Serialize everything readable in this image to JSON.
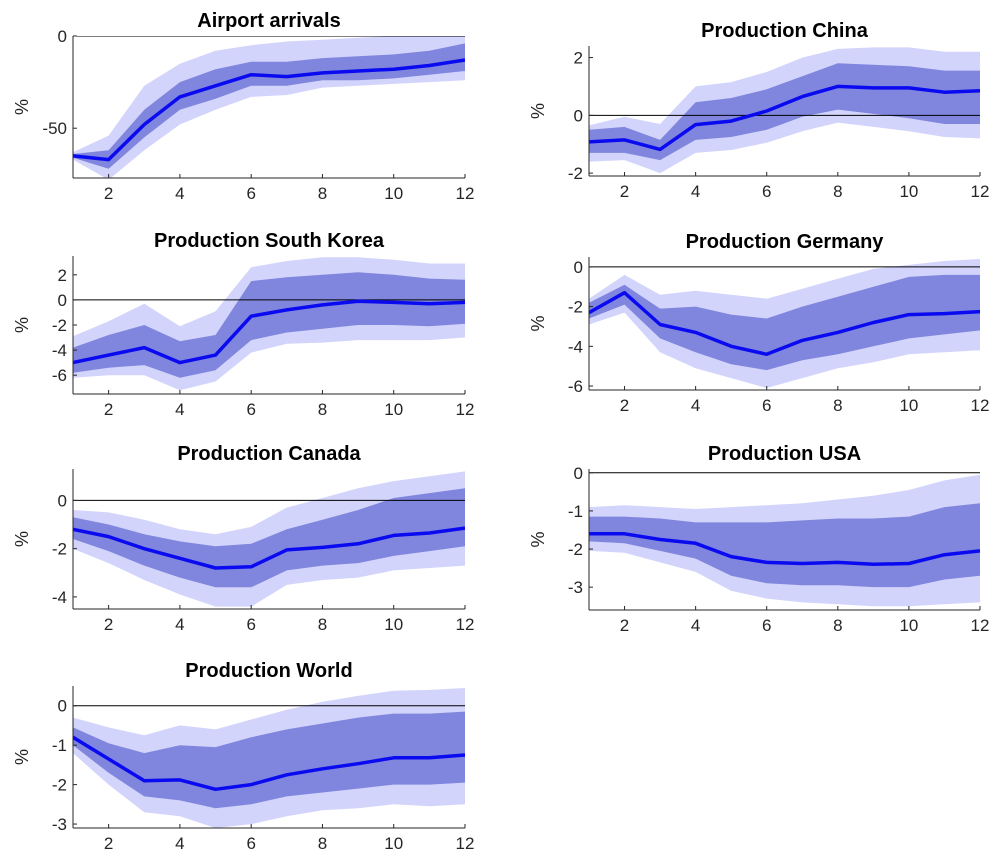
{
  "figure": {
    "background": "#ffffff"
  },
  "style": {
    "outer_band_color": "#d2d4fb",
    "inner_band_color": "#8086dd",
    "line_color": "#0a0af0",
    "zero_line_color": "#000000",
    "axis_color": "#262626"
  },
  "chart_data": [
    {
      "type": "line",
      "title": "Airport arrivals",
      "ylabel": "%",
      "xlim": [
        1,
        12
      ],
      "ylim": [
        -77,
        0
      ],
      "xticks": [
        2,
        4,
        6,
        8,
        10,
        12
      ],
      "yticks": [
        0,
        -50
      ],
      "x": [
        1,
        2,
        3,
        4,
        5,
        6,
        7,
        8,
        9,
        10,
        11,
        12
      ],
      "median": [
        -65,
        -67,
        -48,
        -33,
        -27,
        -21,
        -22,
        -20,
        -19,
        -18,
        -16,
        -13
      ],
      "inner_band": {
        "lower": [
          -66,
          -72,
          -55,
          -40,
          -34,
          -27,
          -27,
          -24,
          -24,
          -23,
          -21,
          -19
        ],
        "upper": [
          -64,
          -62,
          -40,
          -25,
          -18,
          -14,
          -14,
          -12,
          -11,
          -10,
          -8,
          -4
        ]
      },
      "outer_band": {
        "lower": [
          -67,
          -78,
          -62,
          -48,
          -40,
          -33,
          -32,
          -28,
          -27,
          -26,
          -25,
          -24
        ],
        "upper": [
          -63,
          -54,
          -27,
          -15,
          -8,
          -5,
          -3,
          -2,
          -1,
          0,
          0,
          0
        ]
      },
      "zero_line": true,
      "grid": false
    },
    {
      "type": "line",
      "title": "Production China",
      "ylabel": "%",
      "xlim": [
        1,
        12
      ],
      "ylim": [
        -2.1,
        2.4
      ],
      "xticks": [
        2,
        4,
        6,
        8,
        10,
        12
      ],
      "yticks": [
        2,
        0,
        -2
      ],
      "x": [
        1,
        2,
        3,
        4,
        5,
        6,
        7,
        8,
        9,
        10,
        11,
        12
      ],
      "median": [
        -0.92,
        -0.85,
        -1.18,
        -0.32,
        -0.2,
        0.15,
        0.65,
        1.0,
        0.95,
        0.95,
        0.8,
        0.85
      ],
      "inner_band": {
        "lower": [
          -1.3,
          -1.3,
          -1.55,
          -0.85,
          -0.75,
          -0.5,
          -0.05,
          0.2,
          0.05,
          -0.1,
          -0.3,
          -0.3
        ],
        "upper": [
          -0.5,
          -0.4,
          -0.85,
          0.45,
          0.6,
          0.9,
          1.35,
          1.8,
          1.75,
          1.7,
          1.55,
          1.55
        ]
      },
      "outer_band": {
        "lower": [
          -1.6,
          -1.55,
          -2.0,
          -1.3,
          -1.2,
          -0.95,
          -0.55,
          -0.25,
          -0.4,
          -0.55,
          -0.75,
          -0.8
        ],
        "upper": [
          -0.35,
          -0.05,
          -0.3,
          1.0,
          1.15,
          1.5,
          2.0,
          2.3,
          2.35,
          2.35,
          2.2,
          2.2
        ]
      },
      "zero_line": true,
      "grid": false
    },
    {
      "type": "line",
      "title": "Production South Korea",
      "ylabel": "%",
      "xlim": [
        1,
        12
      ],
      "ylim": [
        -7.5,
        3.5
      ],
      "xticks": [
        2,
        4,
        6,
        8,
        10,
        12
      ],
      "yticks": [
        2,
        0,
        -2,
        -4,
        -6
      ],
      "x": [
        1,
        2,
        3,
        4,
        5,
        6,
        7,
        8,
        9,
        10,
        11,
        12
      ],
      "median": [
        -5.0,
        -4.4,
        -3.8,
        -5.0,
        -4.4,
        -1.3,
        -0.8,
        -0.4,
        -0.1,
        -0.2,
        -0.3,
        -0.2
      ],
      "inner_band": {
        "lower": [
          -5.8,
          -5.4,
          -5.2,
          -6.2,
          -5.6,
          -3.2,
          -2.6,
          -2.3,
          -2.0,
          -2.0,
          -2.1,
          -1.9
        ],
        "upper": [
          -3.8,
          -2.8,
          -2.0,
          -3.3,
          -2.8,
          1.5,
          1.8,
          2.0,
          2.2,
          2.0,
          1.7,
          1.6
        ]
      },
      "outer_band": {
        "lower": [
          -6.2,
          -6.0,
          -6.0,
          -7.2,
          -6.5,
          -4.2,
          -3.5,
          -3.4,
          -3.2,
          -3.2,
          -3.2,
          -3.0
        ],
        "upper": [
          -2.9,
          -1.7,
          -0.3,
          -2.1,
          -0.9,
          2.6,
          3.1,
          3.4,
          3.4,
          3.2,
          2.9,
          2.9
        ]
      },
      "zero_line": true,
      "grid": false
    },
    {
      "type": "line",
      "title": "Production Germany",
      "ylabel": "%",
      "xlim": [
        1,
        12
      ],
      "ylim": [
        -6.2,
        0.5
      ],
      "xticks": [
        2,
        4,
        6,
        8,
        10,
        12
      ],
      "yticks": [
        0,
        -2,
        -4,
        -6
      ],
      "x": [
        1,
        2,
        3,
        4,
        5,
        6,
        7,
        8,
        9,
        10,
        11,
        12
      ],
      "median": [
        -2.3,
        -1.3,
        -2.9,
        -3.3,
        -4.0,
        -4.4,
        -3.7,
        -3.3,
        -2.8,
        -2.4,
        -2.35,
        -2.25
      ],
      "inner_band": {
        "lower": [
          -2.6,
          -1.9,
          -3.6,
          -4.3,
          -4.9,
          -5.2,
          -4.7,
          -4.4,
          -4.0,
          -3.6,
          -3.4,
          -3.2
        ],
        "upper": [
          -1.8,
          -0.9,
          -2.1,
          -2.0,
          -2.4,
          -2.6,
          -2.0,
          -1.5,
          -1.0,
          -0.5,
          -0.4,
          -0.4
        ]
      },
      "outer_band": {
        "lower": [
          -2.9,
          -2.3,
          -4.3,
          -5.1,
          -5.6,
          -6.1,
          -5.6,
          -5.1,
          -4.8,
          -4.4,
          -4.3,
          -4.2
        ],
        "upper": [
          -1.6,
          -0.4,
          -1.4,
          -1.2,
          -1.4,
          -1.6,
          -1.1,
          -0.6,
          -0.1,
          0.1,
          0.3,
          0.4
        ]
      },
      "zero_line": true,
      "grid": false
    },
    {
      "type": "line",
      "title": "Production Canada",
      "ylabel": "%",
      "xlim": [
        1,
        12
      ],
      "ylim": [
        -4.5,
        1.3
      ],
      "xticks": [
        2,
        4,
        6,
        8,
        10,
        12
      ],
      "yticks": [
        0,
        -2,
        -4
      ],
      "x": [
        1,
        2,
        3,
        4,
        5,
        6,
        7,
        8,
        9,
        10,
        11,
        12
      ],
      "median": [
        -1.2,
        -1.5,
        -2.0,
        -2.4,
        -2.8,
        -2.75,
        -2.05,
        -1.95,
        -1.8,
        -1.45,
        -1.35,
        -1.15
      ],
      "inner_band": {
        "lower": [
          -1.6,
          -2.1,
          -2.7,
          -3.2,
          -3.6,
          -3.6,
          -2.9,
          -2.7,
          -2.6,
          -2.3,
          -2.1,
          -1.9
        ],
        "upper": [
          -0.7,
          -1.0,
          -1.4,
          -1.7,
          -1.9,
          -1.8,
          -1.2,
          -0.8,
          -0.4,
          0.1,
          0.3,
          0.5
        ]
      },
      "outer_band": {
        "lower": [
          -2.0,
          -2.6,
          -3.3,
          -3.9,
          -4.4,
          -4.4,
          -3.5,
          -3.3,
          -3.2,
          -2.9,
          -2.8,
          -2.7
        ],
        "upper": [
          -0.4,
          -0.5,
          -0.8,
          -1.2,
          -1.4,
          -1.1,
          -0.3,
          0.1,
          0.5,
          0.8,
          1.0,
          1.2
        ]
      },
      "zero_line": true,
      "grid": false
    },
    {
      "type": "line",
      "title": "Production USA",
      "ylabel": "%",
      "xlim": [
        1,
        12
      ],
      "ylim": [
        -3.6,
        0.1
      ],
      "xticks": [
        2,
        4,
        6,
        8,
        10,
        12
      ],
      "yticks": [
        0,
        -1,
        -2,
        -3
      ],
      "x": [
        1,
        2,
        3,
        4,
        5,
        6,
        7,
        8,
        9,
        10,
        11,
        12
      ],
      "median": [
        -1.6,
        -1.6,
        -1.75,
        -1.85,
        -2.2,
        -2.35,
        -2.38,
        -2.35,
        -2.4,
        -2.38,
        -2.15,
        -2.05
      ],
      "inner_band": {
        "lower": [
          -1.8,
          -1.85,
          -2.05,
          -2.25,
          -2.7,
          -2.9,
          -2.95,
          -2.95,
          -3.0,
          -3.0,
          -2.8,
          -2.7
        ],
        "upper": [
          -1.15,
          -1.15,
          -1.2,
          -1.3,
          -1.3,
          -1.3,
          -1.25,
          -1.2,
          -1.2,
          -1.15,
          -0.9,
          -0.8
        ]
      },
      "outer_band": {
        "lower": [
          -2.05,
          -2.1,
          -2.35,
          -2.6,
          -3.1,
          -3.3,
          -3.4,
          -3.45,
          -3.5,
          -3.5,
          -3.45,
          -3.4
        ],
        "upper": [
          -0.9,
          -0.85,
          -0.9,
          -0.95,
          -0.9,
          -0.85,
          -0.8,
          -0.7,
          -0.6,
          -0.45,
          -0.2,
          -0.05
        ]
      },
      "zero_line": true,
      "grid": false
    },
    {
      "type": "line",
      "title": "Production World",
      "ylabel": "%",
      "xlim": [
        1,
        12
      ],
      "ylim": [
        -3.1,
        0.5
      ],
      "xticks": [
        2,
        4,
        6,
        8,
        10,
        12
      ],
      "yticks": [
        0,
        -1,
        -2,
        -3
      ],
      "x": [
        1,
        2,
        3,
        4,
        5,
        6,
        7,
        8,
        9,
        10,
        11,
        12
      ],
      "median": [
        -0.8,
        -1.35,
        -1.9,
        -1.88,
        -2.12,
        -2.0,
        -1.75,
        -1.6,
        -1.47,
        -1.32,
        -1.32,
        -1.25
      ],
      "inner_band": {
        "lower": [
          -1.0,
          -1.7,
          -2.3,
          -2.4,
          -2.6,
          -2.5,
          -2.3,
          -2.2,
          -2.1,
          -2.0,
          -2.0,
          -1.95
        ],
        "upper": [
          -0.55,
          -0.95,
          -1.2,
          -1.0,
          -1.05,
          -0.8,
          -0.6,
          -0.45,
          -0.3,
          -0.2,
          -0.2,
          -0.15
        ]
      },
      "outer_band": {
        "lower": [
          -1.2,
          -2.0,
          -2.7,
          -2.8,
          -3.1,
          -3.0,
          -2.8,
          -2.65,
          -2.6,
          -2.5,
          -2.55,
          -2.5
        ],
        "upper": [
          -0.3,
          -0.55,
          -0.75,
          -0.5,
          -0.6,
          -0.35,
          -0.1,
          0.1,
          0.25,
          0.38,
          0.4,
          0.45
        ]
      },
      "zero_line": true,
      "grid": false
    }
  ]
}
